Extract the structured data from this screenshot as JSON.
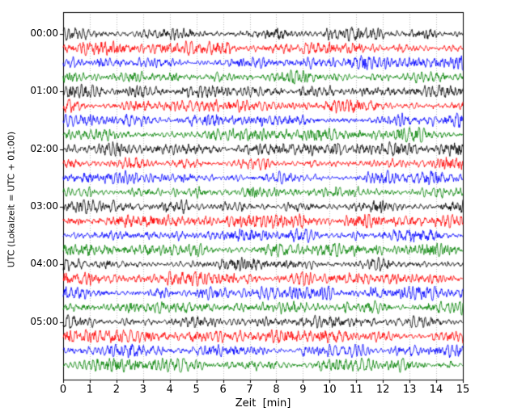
{
  "chart_data": {
    "type": "line",
    "subtype": "helicorder-seismogram",
    "title": "",
    "xlabel": "Zeit  [min]",
    "ylabel": "UTC (Lokalzeit = UTC + 01:00)",
    "xlim": [
      0,
      15
    ],
    "x_ticks": [
      "0",
      "1",
      "2",
      "3",
      "4",
      "5",
      "6",
      "7",
      "8",
      "9",
      "10",
      "11",
      "12",
      "13",
      "14",
      "15"
    ],
    "grid": "vertical-dotted",
    "grid_color": "#b8b8b8",
    "axis_color": "#000000",
    "background_color": "#ffffff",
    "minutes_per_row": 15,
    "rows": 24,
    "trace_colors_cycle": [
      "#000000",
      "#ff0000",
      "#0000ff",
      "#008000"
    ],
    "y_tick_rows": [
      {
        "row": 0,
        "label": "00:00"
      },
      {
        "row": 4,
        "label": "01:00"
      },
      {
        "row": 8,
        "label": "02:00"
      },
      {
        "row": 12,
        "label": "03:00"
      },
      {
        "row": 16,
        "label": "04:00"
      },
      {
        "row": 20,
        "label": "05:00"
      }
    ],
    "traces": [
      {
        "start": "00:00",
        "color": "#000000",
        "seed": 7
      },
      {
        "start": "00:15",
        "color": "#ff0000",
        "seed": 19
      },
      {
        "start": "00:30",
        "color": "#0000ff",
        "seed": 31
      },
      {
        "start": "00:45",
        "color": "#008000",
        "seed": 43
      },
      {
        "start": "01:00",
        "color": "#000000",
        "seed": 57
      },
      {
        "start": "01:15",
        "color": "#ff0000",
        "seed": 63
      },
      {
        "start": "01:30",
        "color": "#0000ff",
        "seed": 71
      },
      {
        "start": "01:45",
        "color": "#008000",
        "seed": 85
      },
      {
        "start": "02:00",
        "color": "#000000",
        "seed": 93
      },
      {
        "start": "02:15",
        "color": "#ff0000",
        "seed": 101
      },
      {
        "start": "02:30",
        "color": "#0000ff",
        "seed": 115
      },
      {
        "start": "02:45",
        "color": "#008000",
        "seed": 123
      },
      {
        "start": "03:00",
        "color": "#000000",
        "seed": 131
      },
      {
        "start": "03:15",
        "color": "#ff0000",
        "seed": 145
      },
      {
        "start": "03:30",
        "color": "#0000ff",
        "seed": 153
      },
      {
        "start": "03:45",
        "color": "#008000",
        "seed": 161
      },
      {
        "start": "04:00",
        "color": "#000000",
        "seed": 175
      },
      {
        "start": "04:15",
        "color": "#ff0000",
        "seed": 183
      },
      {
        "start": "04:30",
        "color": "#0000ff",
        "seed": 191
      },
      {
        "start": "04:45",
        "color": "#008000",
        "seed": 205
      },
      {
        "start": "05:00",
        "color": "#000000",
        "seed": 213
      },
      {
        "start": "05:15",
        "color": "#ff0000",
        "seed": 221
      },
      {
        "start": "05:30",
        "color": "#0000ff",
        "seed": 235
      },
      {
        "start": "05:45",
        "color": "#008000",
        "seed": 243
      }
    ]
  }
}
